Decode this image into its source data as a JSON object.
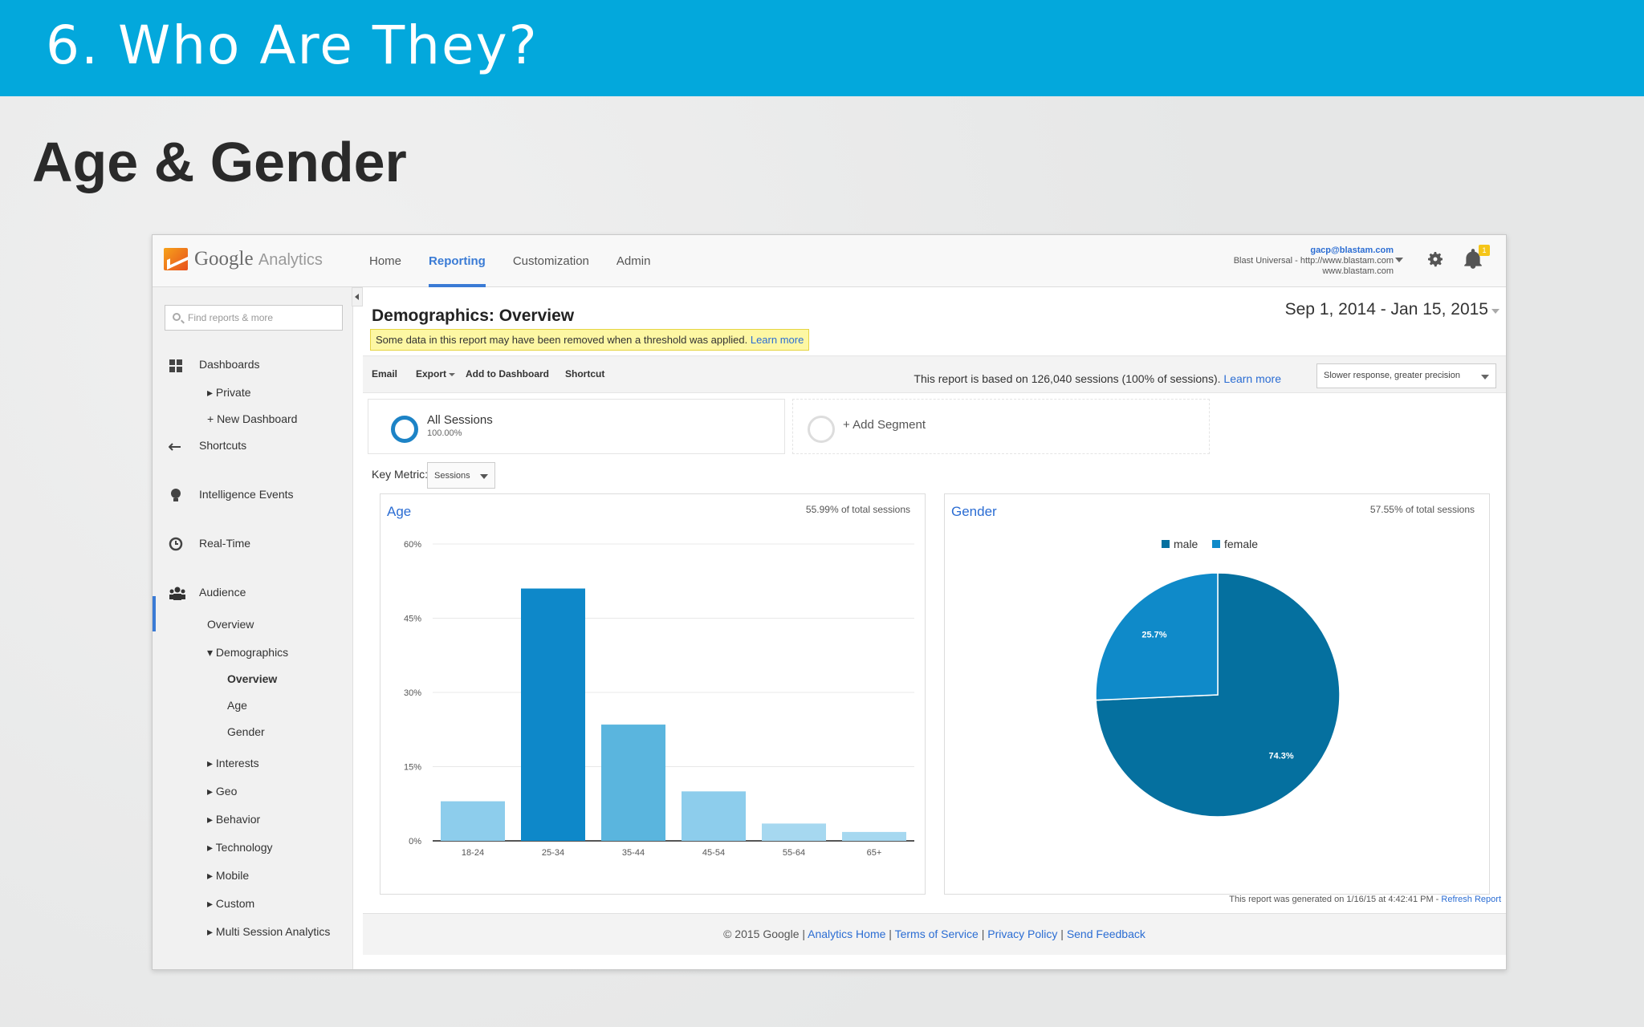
{
  "slide": {
    "title": "6. Who Are They?",
    "subtitle": "Age & Gender"
  },
  "ga": {
    "brand": {
      "name": "Google",
      "product": "Analytics"
    },
    "nav": [
      "Home",
      "Reporting",
      "Customization",
      "Admin"
    ],
    "active_nav": "Reporting",
    "account": {
      "email": "gacp@blastam.com",
      "property": "Blast Universal - http://www.blastam.com",
      "view": "www.blastam.com"
    },
    "notification_count": "1",
    "sidebar": {
      "search_placeholder": "Find reports & more",
      "dashboards": "Dashboards",
      "private": "Private",
      "new_dashboard": "+ New Dashboard",
      "shortcuts": "Shortcuts",
      "intelligence": "Intelligence Events",
      "realtime": "Real-Time",
      "audience": "Audience",
      "overview": "Overview",
      "demographics": "Demographics",
      "demo_overview": "Overview",
      "demo_age": "Age",
      "demo_gender": "Gender",
      "interests": "Interests",
      "geo": "Geo",
      "behavior": "Behavior",
      "technology": "Technology",
      "mobile": "Mobile",
      "custom": "Custom",
      "multi_session": "Multi Session Analytics"
    },
    "report": {
      "title": "Demographics: Overview",
      "date_range": "Sep 1, 2014 - Jan 15, 2015",
      "notice": "Some data in this report may have been removed when a threshold was applied.",
      "notice_link": "Learn more",
      "toolbar": [
        "Email",
        "Export",
        "Add to Dashboard",
        "Shortcut"
      ],
      "sessions_note": "This report is based on 126,040 sessions (100% of sessions).",
      "sessions_link": "Learn more",
      "precision": "Slower response, greater precision",
      "segment_name": "All Sessions",
      "segment_pct": "100.00%",
      "add_segment": "+ Add Segment",
      "key_metric_label": "Key Metric:",
      "key_metric_value": "Sessions",
      "generated": "This report was generated on 1/16/15 at 4:42:41 PM - ",
      "refresh": "Refresh Report"
    },
    "age_panel": {
      "title": "Age",
      "note": "55.99% of total sessions"
    },
    "gender_panel": {
      "title": "Gender",
      "note": "57.55% of total sessions"
    },
    "footer": {
      "copyright": "© 2015 Google",
      "links": [
        "Analytics Home",
        "Terms of Service",
        "Privacy Policy",
        "Send Feedback"
      ]
    }
  },
  "chart_data": [
    {
      "type": "bar",
      "title": "Age",
      "categories": [
        "18-24",
        "25-34",
        "35-44",
        "45-54",
        "55-64",
        "65+"
      ],
      "values": [
        8,
        51,
        23.5,
        10,
        3.5,
        1.8
      ],
      "yticks": [
        "0%",
        "15%",
        "30%",
        "45%",
        "60%"
      ],
      "ylim": [
        0,
        60
      ],
      "colors": [
        "#8dcdec",
        "#0e88c9",
        "#5ab5de",
        "#8dcdec",
        "#a6d8f0",
        "#a6d8f0"
      ]
    },
    {
      "type": "pie",
      "title": "Gender",
      "labels": [
        "male",
        "female"
      ],
      "values": [
        74.3,
        25.7
      ],
      "data_labels": [
        "74.3%",
        "25.7%"
      ],
      "colors": [
        "#05709f",
        "#0f8ac9"
      ],
      "legend": "top"
    }
  ]
}
